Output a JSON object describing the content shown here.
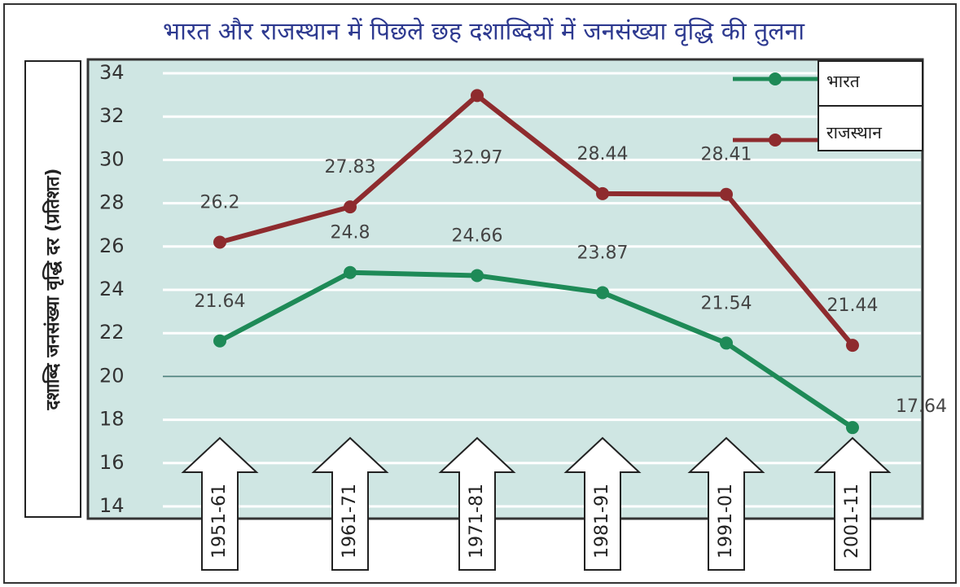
{
  "chart_data": {
    "type": "line",
    "title": "भारत और राजस्थान में पिछले छह दशाब्दियों में जनसंख्या वृद्धि की तुलना",
    "y_label": "दशाब्दि जनसंख्या वृद्धि दर (प्रतिशत)",
    "categories": [
      "1951-61",
      "1961-71",
      "1971-81",
      "1981-91",
      "1991-01",
      "2001-11"
    ],
    "series": [
      {
        "name": "भारत",
        "color": "#1e8a57",
        "values": [
          21.64,
          24.8,
          24.66,
          23.87,
          21.54,
          17.64
        ]
      },
      {
        "name": "राजस्थान",
        "color": "#8e2b2e",
        "values": [
          26.2,
          27.83,
          32.97,
          28.44,
          28.41,
          21.44
        ]
      }
    ],
    "ylim": [
      14,
      34
    ],
    "yticks": [
      14,
      16,
      18,
      20,
      22,
      24,
      26,
      28,
      30,
      32,
      34
    ],
    "reference_line": 20,
    "grid": true
  }
}
